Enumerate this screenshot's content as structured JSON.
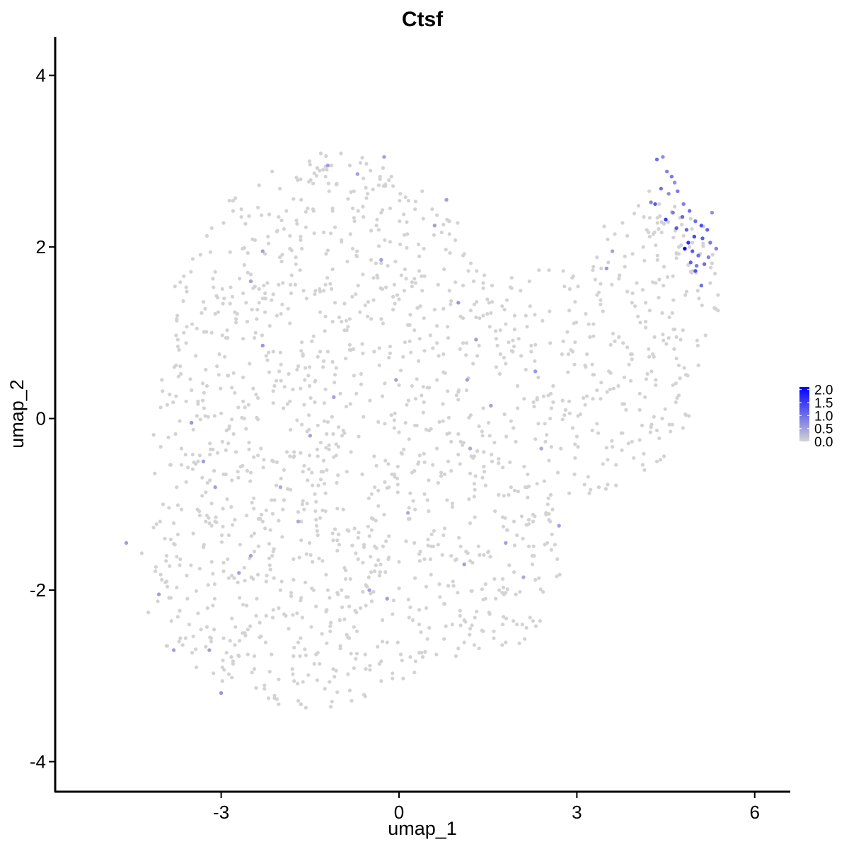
{
  "chart_data": {
    "type": "scatter",
    "title": "Ctsf",
    "xlabel": "umap_1",
    "ylabel": "umap_2",
    "xlim": [
      -5.8,
      6.6
    ],
    "ylim": [
      -4.35,
      4.45
    ],
    "x_ticks": [
      -3,
      0,
      3,
      6
    ],
    "x_tick_labels": [
      "-3",
      "0",
      "3",
      "6"
    ],
    "y_ticks": [
      -4,
      -2,
      0,
      2,
      4
    ],
    "y_tick_labels": [
      "-4",
      "-2",
      "0",
      "2",
      "4"
    ],
    "grid": false,
    "legend": {
      "type": "colorbar",
      "placement": "right",
      "range": [
        0,
        2.1
      ],
      "ticks": [
        0.0,
        0.5,
        1.0,
        1.5,
        2.0
      ],
      "tick_labels": [
        "0.0",
        "0.5",
        "1.0",
        "1.5",
        "2.0"
      ],
      "low_color": "#d3d3d3",
      "high_color": "#0000ff"
    },
    "colors": {
      "low": "#d3d3d3",
      "high": "#0000ff"
    },
    "point_groups": [
      {
        "name": "",
        "description": "expressing cells (x, y, expression)",
        "points": [
          [
            4.45,
            3.05,
            0.7
          ],
          [
            4.52,
            2.88,
            0.8
          ],
          [
            4.6,
            2.82,
            0.9
          ],
          [
            4.42,
            2.68,
            1.0
          ],
          [
            4.55,
            2.62,
            0.7
          ],
          [
            4.7,
            2.65,
            0.9
          ],
          [
            4.8,
            2.5,
            0.8
          ],
          [
            4.32,
            2.5,
            1.2
          ],
          [
            4.62,
            2.4,
            0.9
          ],
          [
            4.78,
            2.35,
            1.1
          ],
          [
            4.9,
            2.42,
            1.0
          ],
          [
            4.5,
            2.32,
            1.5
          ],
          [
            5.0,
            2.3,
            1.0
          ],
          [
            4.68,
            2.22,
            1.2
          ],
          [
            4.85,
            2.2,
            1.1
          ],
          [
            5.1,
            2.25,
            1.3
          ],
          [
            5.2,
            2.2,
            1.1
          ],
          [
            4.98,
            2.12,
            1.4
          ],
          [
            5.12,
            2.1,
            1.2
          ],
          [
            5.25,
            2.05,
            0.9
          ],
          [
            4.88,
            2.05,
            1.6
          ],
          [
            4.82,
            1.98,
            2.1
          ],
          [
            4.95,
            1.95,
            1.2
          ],
          [
            5.05,
            1.9,
            1.0
          ],
          [
            5.22,
            1.88,
            0.8
          ],
          [
            4.92,
            1.82,
            1.1
          ],
          [
            5.02,
            1.78,
            0.9
          ],
          [
            5.15,
            1.8,
            1.0
          ],
          [
            5.0,
            1.72,
            1.3
          ],
          [
            5.1,
            1.55,
            1.0
          ],
          [
            4.25,
            2.52,
            0.8
          ],
          [
            4.65,
            2.75,
            0.7
          ],
          [
            4.35,
            3.02,
            1.0
          ],
          [
            5.28,
            2.4,
            0.7
          ],
          [
            5.35,
            1.98,
            0.8
          ],
          [
            3.5,
            1.75,
            0.6
          ],
          [
            3.6,
            1.95,
            0.5
          ],
          [
            2.7,
            -1.25,
            0.5
          ],
          [
            1.8,
            -1.45,
            0.5
          ],
          [
            1.0,
            1.35,
            0.6
          ],
          [
            -2.3,
            0.85,
            0.6
          ],
          [
            -2.5,
            1.6,
            0.5
          ],
          [
            -3.5,
            -0.05,
            0.6
          ],
          [
            -3.3,
            -0.5,
            0.5
          ],
          [
            -3.1,
            -0.8,
            0.5
          ],
          [
            -2.5,
            -1.6,
            0.5
          ],
          [
            -2.7,
            -1.8,
            0.5
          ],
          [
            -3.8,
            -2.7,
            0.5
          ],
          [
            -3.0,
            -3.2,
            0.6
          ],
          [
            -3.2,
            -2.7,
            0.5
          ],
          [
            -0.5,
            -2.0,
            0.5
          ],
          [
            -0.2,
            -2.1,
            0.5
          ],
          [
            1.1,
            -1.7,
            0.5
          ],
          [
            0.6,
            2.25,
            0.5
          ],
          [
            -0.3,
            1.85,
            0.5
          ],
          [
            -1.2,
            2.95,
            0.5
          ],
          [
            -0.25,
            3.05,
            0.5
          ],
          [
            -0.7,
            2.85,
            0.5
          ],
          [
            1.15,
            0.45,
            0.5
          ],
          [
            1.3,
            0.92,
            0.5
          ],
          [
            1.55,
            0.15,
            0.5
          ],
          [
            2.3,
            0.55,
            0.6
          ],
          [
            -4.05,
            -2.05,
            0.5
          ],
          [
            -1.5,
            -0.2,
            0.5
          ],
          [
            -1.1,
            0.25,
            0.5
          ],
          [
            -2.3,
            1.95,
            0.5
          ],
          [
            -4.6,
            -1.45,
            0.5
          ],
          [
            -0.05,
            0.45,
            0.5
          ],
          [
            0.8,
            2.55,
            0.5
          ],
          [
            1.2,
            -0.35,
            0.4
          ],
          [
            -1.7,
            -1.2,
            0.4
          ],
          [
            -2.0,
            -0.8,
            0.4
          ],
          [
            0.15,
            -1.1,
            0.4
          ],
          [
            2.1,
            -1.85,
            0.4
          ],
          [
            2.4,
            -0.35,
            0.4
          ]
        ]
      },
      {
        "name": "",
        "description": "non-expressing cells (x, y), expression 0",
        "points": []
      }
    ]
  }
}
